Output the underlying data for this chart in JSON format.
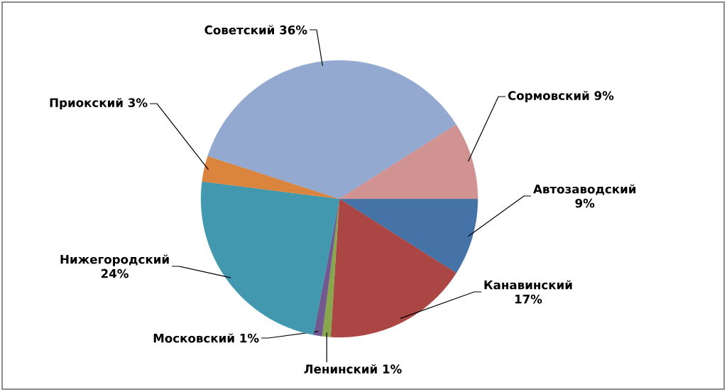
{
  "chart_data": {
    "type": "pie",
    "categories": [
      "Автозаводский",
      "Канавинский",
      "Ленинский",
      "Московский",
      "Нижегородский",
      "Приокский",
      "Советский",
      "Сормовский"
    ],
    "values": [
      9,
      17,
      1,
      1,
      24,
      3,
      36,
      9
    ],
    "colors": [
      "#4572a7",
      "#aa4643",
      "#89a54e",
      "#71588f",
      "#4198af",
      "#db843d",
      "#93a9cf",
      "#d19392"
    ],
    "value_labels": [
      "9%",
      "17%",
      "1%",
      "1%",
      "24%",
      "3%",
      "36%",
      "9%"
    ]
  }
}
